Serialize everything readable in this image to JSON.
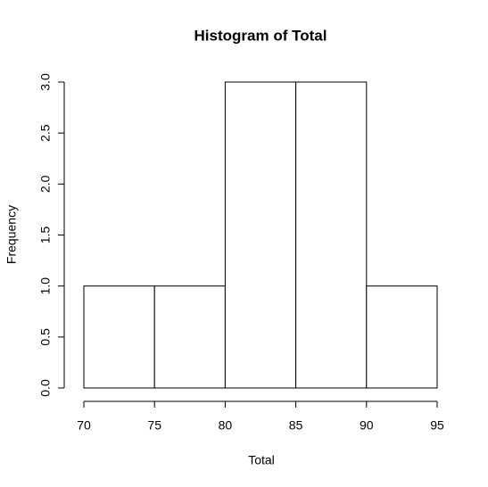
{
  "chart_data": {
    "type": "histogram",
    "title": "Histogram of Total",
    "x_label": "Total",
    "y_label": "Frequency",
    "bins": [
      70,
      75,
      80,
      85,
      90,
      95
    ],
    "counts": [
      1,
      1,
      3,
      3,
      1
    ],
    "color": "#ffffff",
    "xlim": [
      70,
      95
    ],
    "xticks": [
      70,
      75,
      80,
      85,
      90,
      95
    ],
    "ylim": [
      0,
      3
    ],
    "yticks": [
      {
        "value": 0,
        "label": "0.0"
      },
      0.5,
      {
        "value": 1,
        "label": "1.0"
      },
      1.5,
      {
        "value": 2,
        "label": "2.0"
      },
      2.5,
      {
        "value": 3,
        "label": "3.0"
      }
    ]
  }
}
